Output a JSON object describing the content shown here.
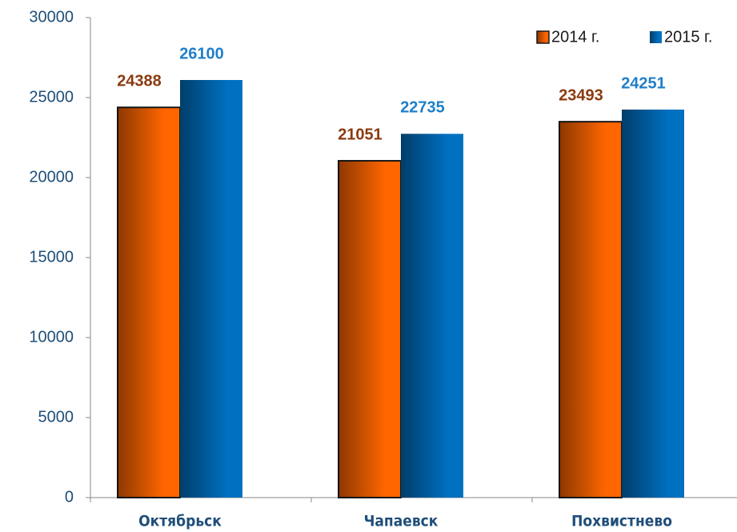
{
  "chart_data": {
    "type": "bar",
    "categories": [
      "Октябрьск",
      "Чапаевск",
      "Похвистнево"
    ],
    "series": [
      {
        "name": "2014 г.",
        "color": "#ff6600",
        "label_color": "#8b3a0f",
        "values": [
          24388,
          21051,
          23493
        ]
      },
      {
        "name": "2015 г.",
        "color": "#0070c0",
        "label_color": "#1f7fc8",
        "values": [
          26100,
          22735,
          24251
        ]
      }
    ],
    "ylim": [
      0,
      30000
    ],
    "yticks": [
      0,
      5000,
      10000,
      15000,
      20000,
      25000,
      30000
    ],
    "legend": "top-right",
    "data_labels": true
  }
}
